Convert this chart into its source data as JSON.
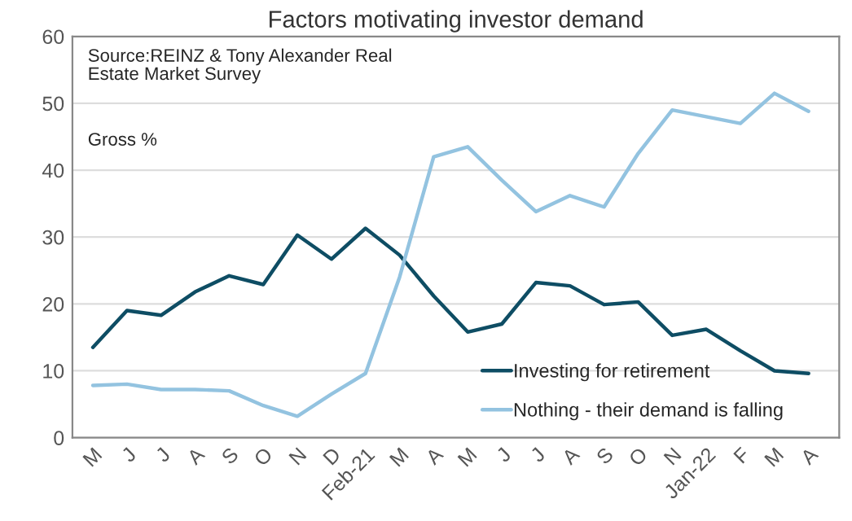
{
  "chart_data": {
    "type": "line",
    "title": "Factors motivating investor demand",
    "ylabel": "Gross %",
    "annotations": [
      "Source:REINZ & Tony Alexander Real\nEstate Market Survey"
    ],
    "categories": [
      "M",
      "J",
      "J",
      "A",
      "S",
      "O",
      "N",
      "D",
      "Feb-21",
      "M",
      "A",
      "M",
      "J",
      "J",
      "A",
      "S",
      "O",
      "N",
      "Jan-22",
      "F",
      "M",
      "A"
    ],
    "series": [
      {
        "name": "Investing for retirement",
        "color": "#0e4d64",
        "values": [
          13.5,
          19,
          18.3,
          21.8,
          24.2,
          22.9,
          30.3,
          26.7,
          31.3,
          27.3,
          21.2,
          15.8,
          17,
          23.2,
          22.7,
          19.9,
          20.3,
          15.3,
          16.2,
          13,
          10,
          9.6
        ]
      },
      {
        "name": "Nothing - their demand is falling",
        "color": "#93c3e0",
        "values": [
          7.8,
          8,
          7.2,
          7.2,
          7,
          4.8,
          3.2,
          6.5,
          9.6,
          24,
          42,
          43.5,
          38.5,
          33.8,
          36.2,
          34.5,
          42.5,
          49,
          48,
          47,
          51.5,
          48.8
        ]
      }
    ],
    "ylim": [
      0,
      60
    ],
    "yticks": [
      0,
      10,
      20,
      30,
      40,
      50,
      60
    ],
    "grid": "y",
    "legend": "bottom right",
    "marker": "none",
    "line_style": "solid"
  }
}
